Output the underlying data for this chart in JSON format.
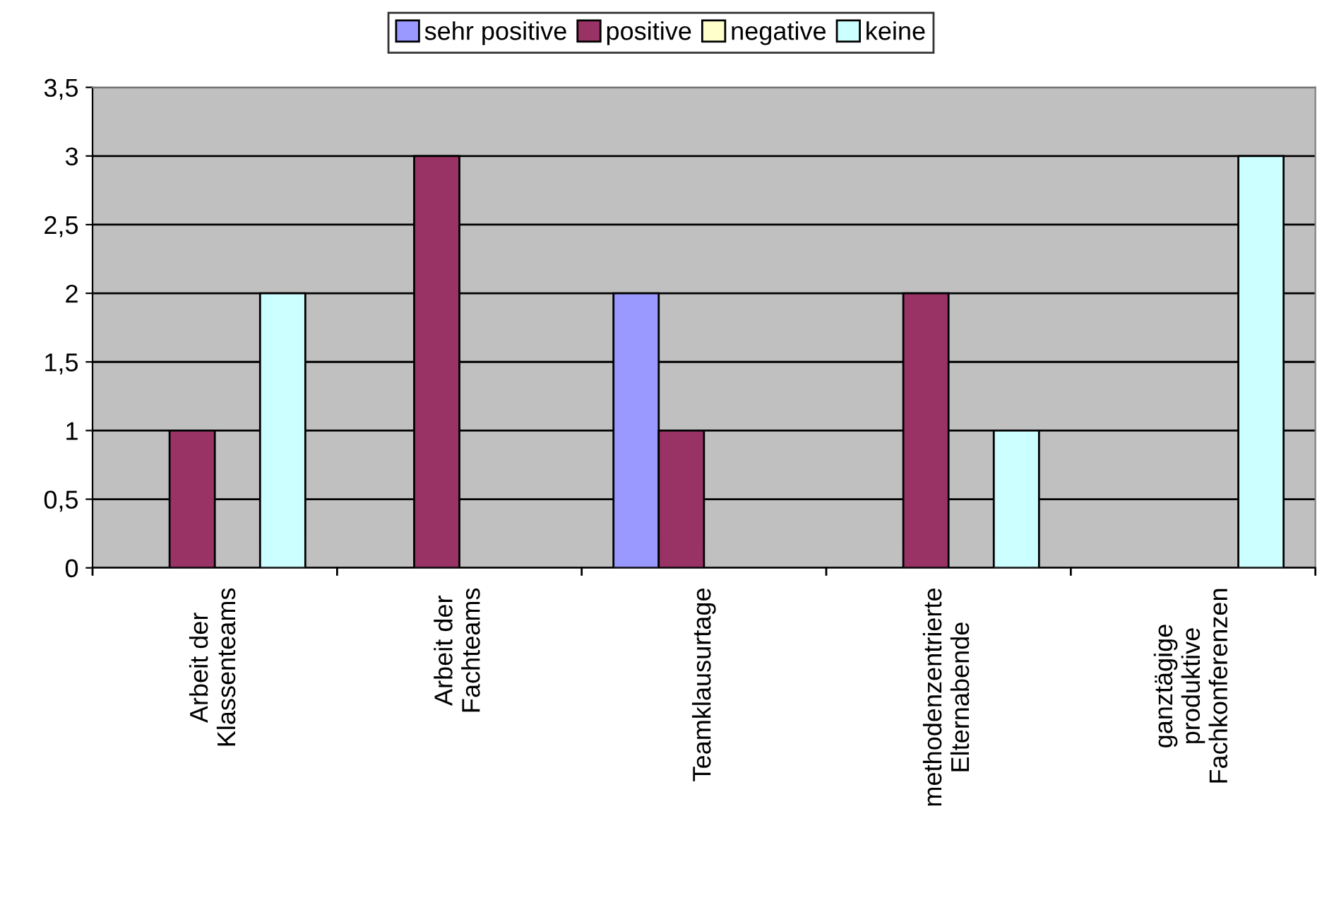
{
  "chart_data": {
    "type": "bar",
    "categories": [
      "Arbeit der\nKlassenteams",
      "Arbeit der\nFachteams",
      "Teamklausurtage",
      "methodenzentrierte\nElternabende",
      "ganztägige\nproduktive\nFachkonferenzen"
    ],
    "series": [
      {
        "name": "sehr positive",
        "color": "#9999ff",
        "values": [
          null,
          null,
          2,
          null,
          null
        ]
      },
      {
        "name": "positive",
        "color": "#993366",
        "values": [
          1,
          3,
          1,
          2,
          null
        ]
      },
      {
        "name": "negative",
        "color": "#ffffcc",
        "values": [
          null,
          null,
          null,
          null,
          null
        ]
      },
      {
        "name": "keine",
        "color": "#ccffff",
        "values": [
          2,
          null,
          null,
          1,
          3
        ]
      }
    ],
    "ylim": [
      0,
      3.5
    ],
    "yticks": [
      0,
      {
        "value": 0.5,
        "label": "0,5"
      },
      1,
      {
        "value": 1.5,
        "label": "1,5"
      },
      2,
      {
        "value": 2.5,
        "label": "2,5"
      },
      3,
      {
        "value": 3.5,
        "label": "3,5"
      }
    ],
    "grid": "y",
    "legend": "top"
  }
}
